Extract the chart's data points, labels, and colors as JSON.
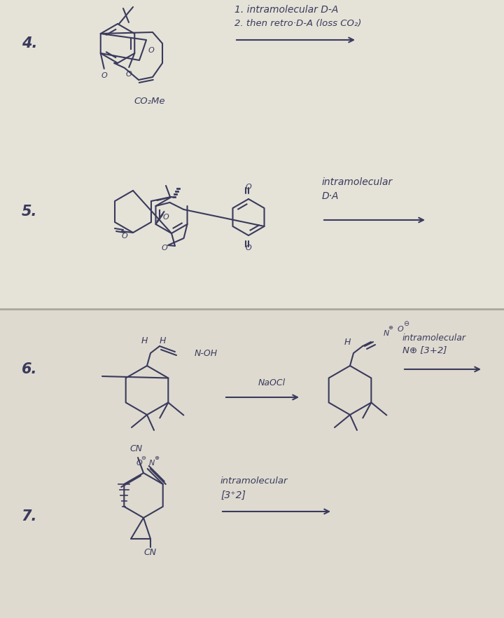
{
  "bg_top": "#d8d5cc",
  "bg_bottom": "#d4d1c8",
  "panel_top_color": "#e5e2d8",
  "panel_bottom_color": "#dedad0",
  "ink_color": "#3a3a5c",
  "fig_width": 7.2,
  "fig_height": 8.82,
  "label_4": "4.",
  "label_5": "5.",
  "label_6": "6.",
  "label_7": "7.",
  "text_4_line1": "1. intramolecular D-A",
  "text_4_line2": "2. then retro·D-A (loss CO₂)",
  "text_5_line1": "intramolecular",
  "text_5_line2": "D·A",
  "text_6_naocl": "NaOCl",
  "text_6_noh": "N-OH",
  "text_6_right_top": "intramolecular",
  "text_6_right_mid": "N⊕ [3+2]",
  "text_7_line1": "intramolecular",
  "text_7_line2": "[3⁺2]",
  "co2me": "CO₂Me",
  "cn_label": "CN"
}
